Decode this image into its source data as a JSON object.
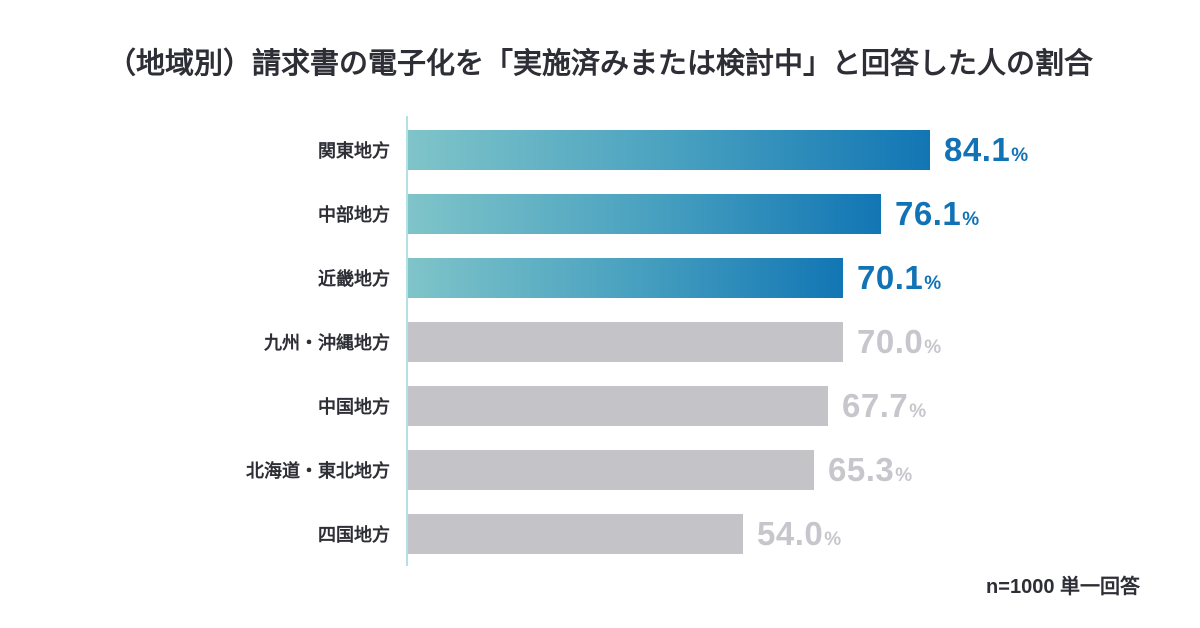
{
  "title": "（地域別）請求書の電子化を「実施済みまたは検討中」と回答した人の割合",
  "footnote": "n=1000 単一回答",
  "chart_data": {
    "type": "bar",
    "orientation": "horizontal",
    "title": "（地域別）請求書の電子化を「実施済みまたは検討中」と回答した人の割合",
    "categories": [
      "関東地方",
      "中部地方",
      "近畿地方",
      "九州・沖縄地方",
      "中国地方",
      "北海道・東北地方",
      "四国地方"
    ],
    "values": [
      84.1,
      76.1,
      70.1,
      70.0,
      67.7,
      65.3,
      54.0
    ],
    "value_labels": [
      "84.1",
      "76.1",
      "70.1",
      "70.0",
      "67.7",
      "65.3",
      "54.0"
    ],
    "value_suffix": "%",
    "xlim": [
      0,
      100
    ],
    "grid": false,
    "legend": false,
    "highlighted_categories": 3,
    "note": "n=1000 単一回答",
    "colors": {
      "highlight_gradient_start": "#7fc4c9",
      "highlight_gradient_mid": "#4aa2c0",
      "highlight_gradient_end": "#1276b4",
      "highlight_value_text": "#1173b6",
      "muted_bar": "#c4c3c8",
      "muted_value_text": "#c7c6cc",
      "axis_line": "#b5e1e6",
      "label_text": "#2e2e36"
    }
  }
}
